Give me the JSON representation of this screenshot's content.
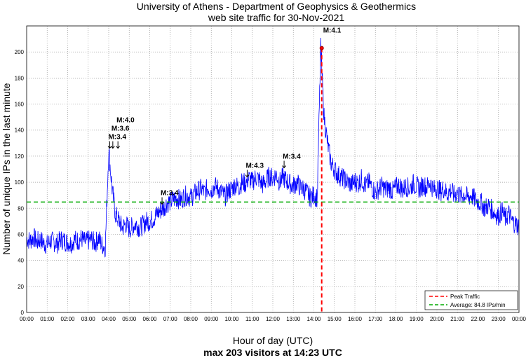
{
  "chart_data": {
    "type": "line",
    "title": "University of Athens - Department of Geophysics & Geothermics",
    "subtitle": "web site traffic for 30-Nov-2021",
    "xlabel": "Hour of day (UTC)",
    "xlabel2": "max 203 visitors at 14:23 UTC",
    "ylabel": "Number of unique IPs in the last minute",
    "xlim": [
      0,
      24
    ],
    "ylim": [
      0,
      220
    ],
    "grid": true,
    "x_ticks": [
      "00:00",
      "01:00",
      "02:00",
      "03:00",
      "04:00",
      "05:00",
      "06:00",
      "07:00",
      "08:00",
      "09:00",
      "10:00",
      "11:00",
      "12:00",
      "13:00",
      "14:00",
      "15:00",
      "16:00",
      "17:00",
      "18:00",
      "19:00",
      "20:00",
      "21:00",
      "22:00",
      "23:00",
      "00:00"
    ],
    "y_ticks": [
      0,
      20,
      40,
      60,
      80,
      100,
      120,
      140,
      160,
      180,
      200
    ],
    "sample_interval_minutes": 10,
    "series": [
      {
        "name": "Traffic",
        "color": "#0000ff",
        "values": [
          57,
          55,
          58,
          54,
          56,
          53,
          52,
          55,
          54,
          53,
          56,
          55,
          54,
          53,
          56,
          55,
          57,
          54,
          55,
          56,
          53,
          57,
          52,
          50,
          125,
          95,
          75,
          70,
          65,
          68,
          64,
          66,
          68,
          65,
          67,
          70,
          70,
          72,
          75,
          78,
          80,
          84,
          85,
          87,
          88,
          86,
          89,
          90,
          88,
          91,
          93,
          95,
          92,
          96,
          94,
          97,
          95,
          92,
          89,
          93,
          95,
          98,
          96,
          100,
          99,
          103,
          100,
          104,
          102,
          98,
          101,
          105,
          103,
          106,
          100,
          104,
          101,
          99,
          97,
          100,
          96,
          95,
          92,
          88,
          90,
          88,
          203,
          150,
          130,
          115,
          110,
          106,
          104,
          102,
          100,
          98,
          101,
          99,
          103,
          97,
          100,
          96,
          92,
          95,
          97,
          94,
          96,
          93,
          96,
          98,
          94,
          97,
          95,
          99,
          97,
          95,
          98,
          96,
          100,
          94,
          96,
          93,
          95,
          91,
          94,
          90,
          92,
          89,
          91,
          88,
          90,
          87,
          85,
          84,
          80,
          82,
          79,
          76,
          74,
          78,
          72,
          76,
          70,
          68,
          66
        ]
      }
    ],
    "peak": {
      "name": "Peak Traffic",
      "time_h": 14.383,
      "value": 203,
      "label": "M:4.1",
      "color": "#ff0000"
    },
    "average": {
      "name": "Average: 84.8 IPs/min",
      "value": 84.8,
      "color": "#00aa00"
    },
    "annotations": [
      {
        "label": "M:3.4",
        "time_h": 4.05,
        "value": 125
      },
      {
        "label": "M:3.6",
        "time_h": 4.2,
        "value": 125
      },
      {
        "label": "M:4.0",
        "time_h": 4.45,
        "value": 125
      },
      {
        "label": "M:3.4",
        "time_h": 6.6,
        "value": 82
      },
      {
        "label": "M:4.3",
        "time_h": 10.75,
        "value": 103
      },
      {
        "label": "M:3.4",
        "time_h": 12.55,
        "value": 110
      }
    ],
    "legend_position": "bottom-right"
  }
}
